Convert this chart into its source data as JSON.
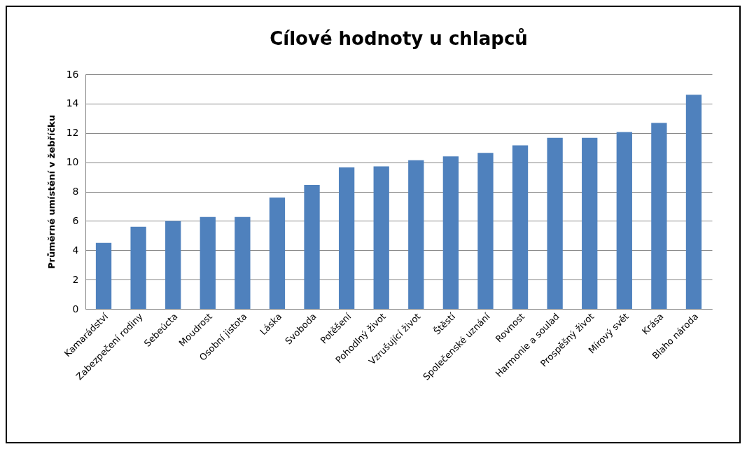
{
  "chart_data": {
    "type": "bar",
    "title": "Cílové hodnoty u chlapců",
    "ylabel": "Průměrné umístění v žebříčku",
    "categories": [
      "Kamarádství",
      "Zabezpečení rodiny",
      "Sebeúcta",
      "Moudrost",
      "Osobní jistota",
      "Láska",
      "Svoboda",
      "Potěšení",
      "Pohodlný život",
      "Vzrušující život",
      "Štěstí",
      "Společenské uznání",
      "Rovnost",
      "Harmonie a soulad",
      "Prospěšný život",
      "Mírový svět",
      "Krása",
      "Blaho národa"
    ],
    "values": [
      4.5,
      5.6,
      6.0,
      6.27,
      6.27,
      7.6,
      8.45,
      9.65,
      9.72,
      10.14,
      10.4,
      10.64,
      11.15,
      11.66,
      11.66,
      12.06,
      12.68,
      14.6
    ],
    "color": "#4f81bd",
    "ylim": [
      0,
      16
    ],
    "yticks": [
      0,
      2,
      4,
      6,
      8,
      10,
      12,
      14,
      16
    ],
    "grid": "y"
  }
}
